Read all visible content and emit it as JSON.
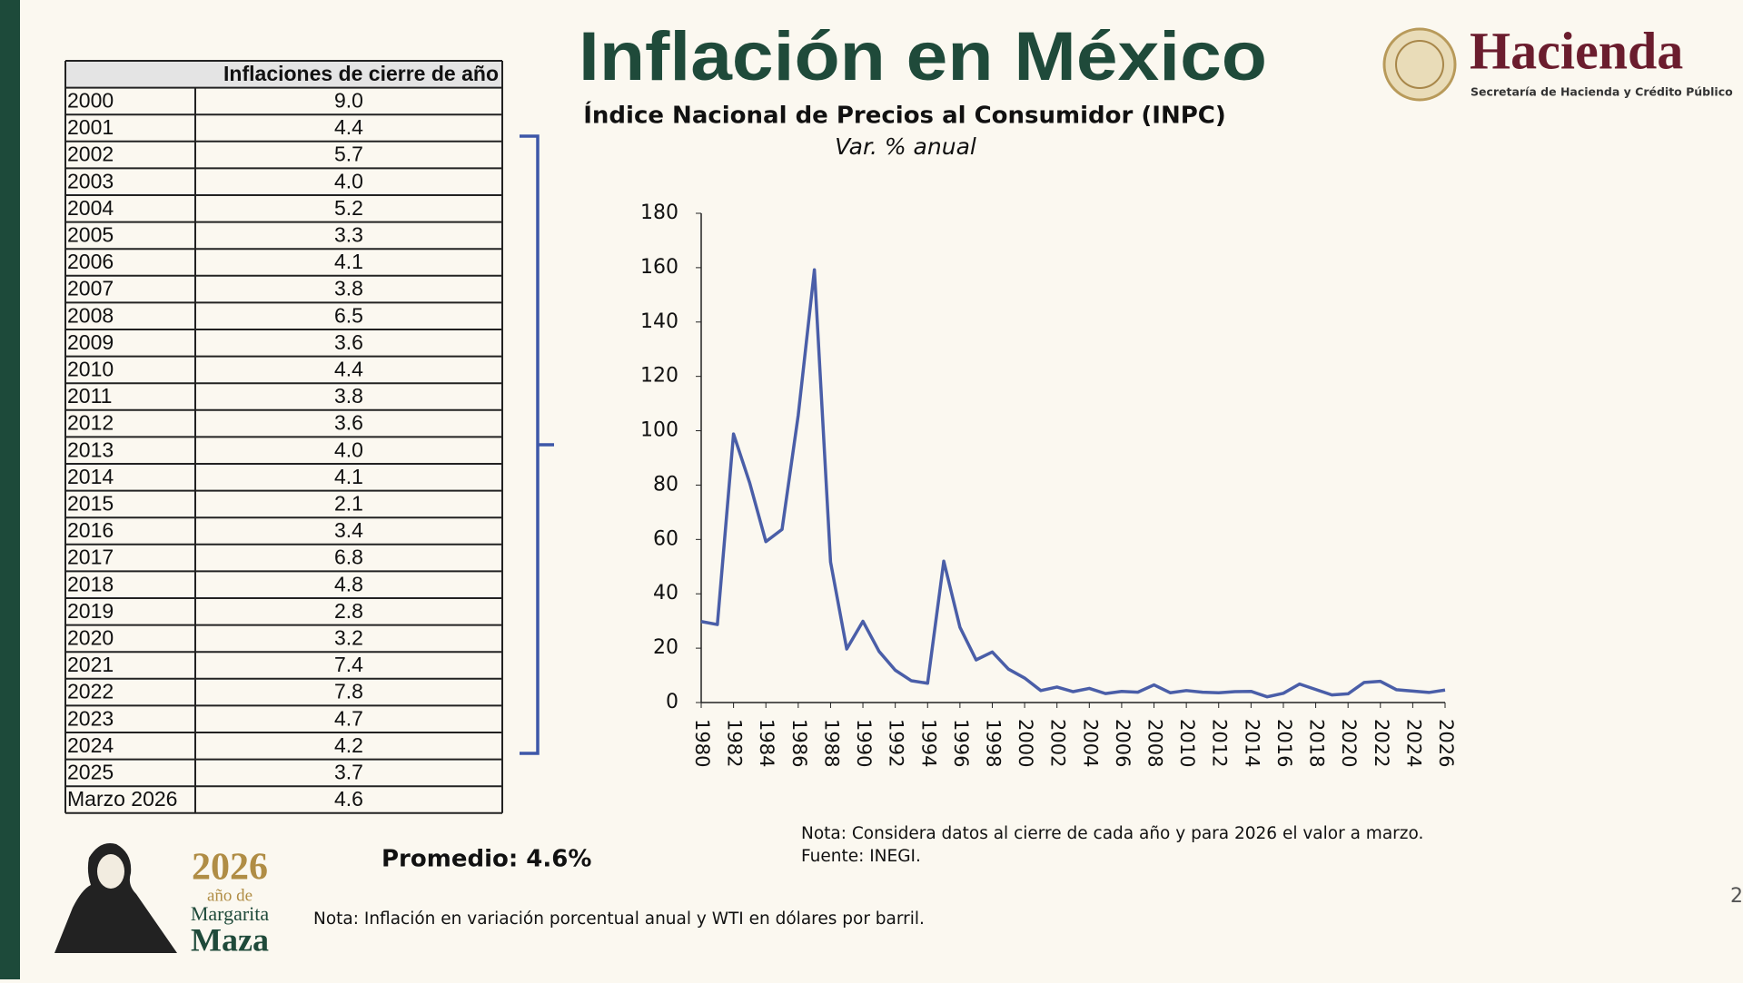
{
  "header": {
    "title": "Inflación en México",
    "logo_name": "Hacienda",
    "logo_subtitle": "Secretaría de Hacienda y Crédito Público"
  },
  "table": {
    "header": "Inflaciones de cierre de año",
    "rows": [
      [
        "2000",
        "9.0"
      ],
      [
        "2001",
        "4.4"
      ],
      [
        "2002",
        "5.7"
      ],
      [
        "2003",
        "4.0"
      ],
      [
        "2004",
        "5.2"
      ],
      [
        "2005",
        "3.3"
      ],
      [
        "2006",
        "4.1"
      ],
      [
        "2007",
        "3.8"
      ],
      [
        "2008",
        "6.5"
      ],
      [
        "2009",
        "3.6"
      ],
      [
        "2010",
        "4.4"
      ],
      [
        "2011",
        "3.8"
      ],
      [
        "2012",
        "3.6"
      ],
      [
        "2013",
        "4.0"
      ],
      [
        "2014",
        "4.1"
      ],
      [
        "2015",
        "2.1"
      ],
      [
        "2016",
        "3.4"
      ],
      [
        "2017",
        "6.8"
      ],
      [
        "2018",
        "4.8"
      ],
      [
        "2019",
        "2.8"
      ],
      [
        "2020",
        "3.2"
      ],
      [
        "2021",
        "7.4"
      ],
      [
        "2022",
        "7.8"
      ],
      [
        "2023",
        "4.7"
      ],
      [
        "2024",
        "4.2"
      ],
      [
        "2025",
        "3.7"
      ],
      [
        "Marzo 2026",
        "4.6"
      ]
    ]
  },
  "chart_data": {
    "type": "line",
    "title": "Índice Nacional de Precios al Consumidor (INPC)",
    "subtitle": "Var. % anual",
    "x": [
      1980,
      1981,
      1982,
      1983,
      1984,
      1985,
      1986,
      1987,
      1988,
      1989,
      1990,
      1991,
      1992,
      1993,
      1994,
      1995,
      1996,
      1997,
      1998,
      1999,
      2000,
      2001,
      2002,
      2003,
      2004,
      2005,
      2006,
      2007,
      2008,
      2009,
      2010,
      2011,
      2012,
      2013,
      2014,
      2015,
      2016,
      2017,
      2018,
      2019,
      2020,
      2021,
      2022,
      2023,
      2024,
      2025,
      2026
    ],
    "series": [
      {
        "name": "INPC",
        "color": "#4a5ea8",
        "values": [
          29.8,
          28.7,
          98.8,
          80.8,
          59.2,
          63.7,
          105.7,
          159.2,
          51.7,
          19.7,
          29.9,
          18.8,
          11.9,
          8.0,
          7.1,
          52.0,
          27.7,
          15.7,
          18.6,
          12.3,
          9.0,
          4.4,
          5.7,
          4.0,
          5.2,
          3.3,
          4.1,
          3.8,
          6.5,
          3.6,
          4.4,
          3.8,
          3.6,
          4.0,
          4.1,
          2.1,
          3.4,
          6.8,
          4.8,
          2.8,
          3.2,
          7.4,
          7.8,
          4.7,
          4.2,
          3.7,
          4.6
        ]
      }
    ],
    "xlim": [
      1980,
      2026
    ],
    "xticks": [
      1980,
      1982,
      1984,
      1986,
      1988,
      1990,
      1992,
      1994,
      1996,
      1998,
      2000,
      2002,
      2004,
      2006,
      2008,
      2010,
      2012,
      2014,
      2016,
      2018,
      2020,
      2022,
      2024,
      2026
    ],
    "ylim": [
      0,
      180
    ],
    "yticks": [
      0,
      20,
      40,
      60,
      80,
      100,
      120,
      140,
      160,
      180
    ],
    "grid": false
  },
  "average": "Promedio: 4.6%",
  "chart_notes": [
    "Nota: Considera datos al cierre de cada año y para 2026 el valor a marzo.",
    "Fuente: INEGI."
  ],
  "footer_note": "Nota: Inflación en variación porcentual anual y WTI en dólares por barril.",
  "year_logo": {
    "year": "2026",
    "line1": "año de",
    "line2": "Margarita",
    "line3": "Maza"
  },
  "page_number": "2"
}
